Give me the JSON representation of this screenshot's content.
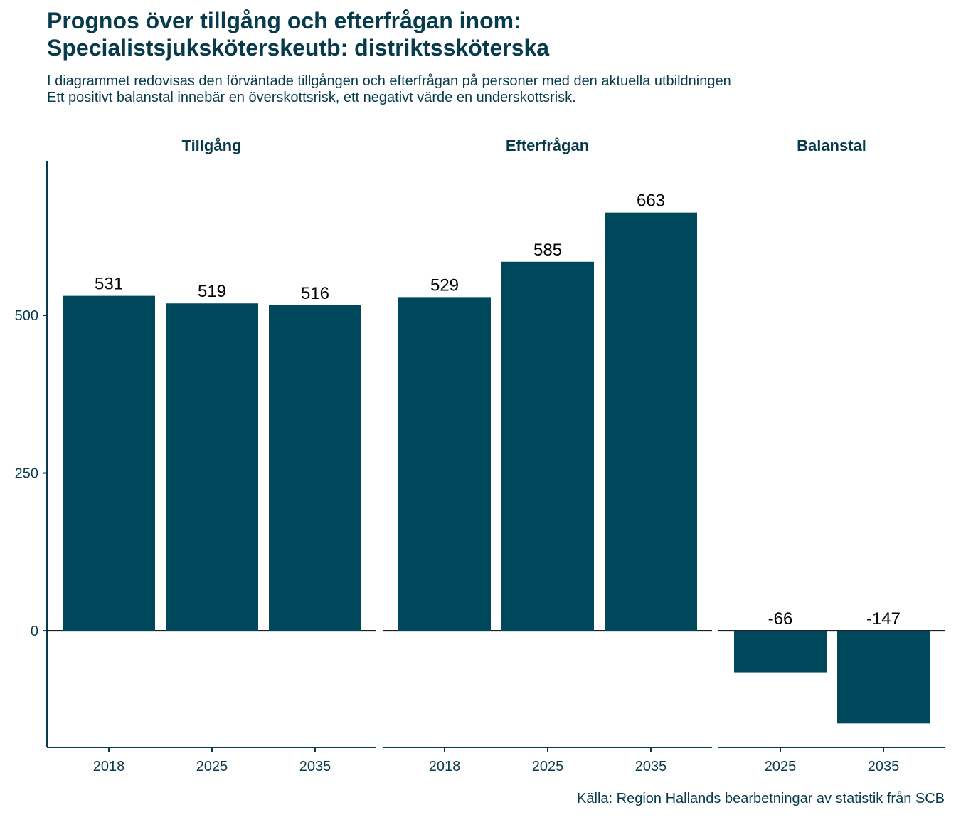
{
  "title_lines": [
    "Prognos över tillgång och efterfrågan inom:",
    "Specialistsjuksköterskeutb: distriktssköterska"
  ],
  "subtitle_lines": [
    "I diagrammet redovisas den förväntade tillgången och efterfrågan på personer med den aktuella utbildningen",
    "Ett positivt balanstal innebär en överskottsrisk, ett negativt värde en underskottsrisk."
  ],
  "caption": "Källa: Region Hallands bearbetningar av statistik från SCB",
  "colors": {
    "bar": "#00495c",
    "text": "#073b4c",
    "axis": "#073b4c",
    "zero_line": "#000000"
  },
  "chart_data": {
    "type": "bar",
    "title": "Prognos över tillgång och efterfrågan inom: Specialistsjuksköterskeutb: distriktssköterska",
    "xlabel": "",
    "ylabel": "",
    "ylim": [
      -185,
      745
    ],
    "yticks": [
      0,
      250,
      500
    ],
    "grid": false,
    "legend": "none",
    "facets": [
      {
        "name": "Tillgång",
        "categories": [
          "2018",
          "2025",
          "2035"
        ],
        "values": [
          531,
          519,
          516
        ],
        "labels": [
          "531",
          "519",
          "516"
        ]
      },
      {
        "name": "Efterfrågan",
        "categories": [
          "2018",
          "2025",
          "2035"
        ],
        "values": [
          529,
          585,
          663
        ],
        "labels": [
          "529",
          "585",
          "663"
        ]
      },
      {
        "name": "Balanstal",
        "categories": [
          "2025",
          "2035"
        ],
        "values": [
          -66,
          -147
        ],
        "labels": [
          "-66",
          "-147"
        ]
      }
    ]
  }
}
